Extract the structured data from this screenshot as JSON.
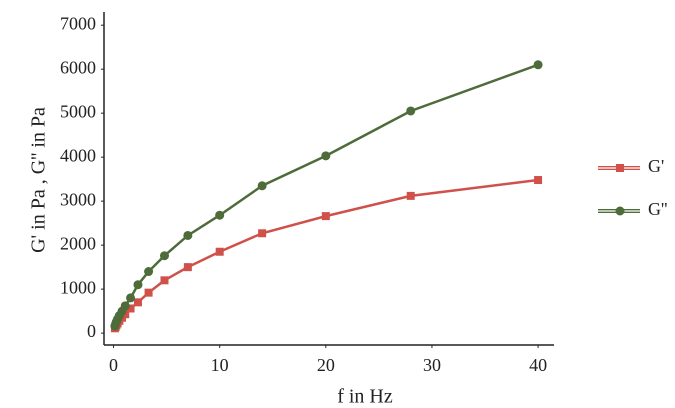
{
  "chart_data": {
    "type": "line",
    "x_label": "f in Hz",
    "y_label": "G' in Pa , G'' in Pa",
    "x": [
      0.13,
      0.19,
      0.27,
      0.38,
      0.55,
      0.8,
      1.1,
      1.6,
      2.3,
      3.3,
      4.8,
      7,
      10,
      14,
      20,
      28,
      40
    ],
    "series": [
      {
        "name": "G'",
        "color": "#d0504a",
        "marker": "square",
        "values": [
          110,
          140,
          180,
          220,
          280,
          350,
          430,
          560,
          700,
          920,
          1200,
          1500,
          1850,
          2270,
          2660,
          3120,
          3480
        ]
      },
      {
        "name": "G''",
        "color": "#4e6b3a",
        "marker": "circle",
        "values": [
          160,
          210,
          260,
          320,
          400,
          500,
          620,
          800,
          1100,
          1400,
          1760,
          2220,
          2680,
          3350,
          4030,
          5050,
          6100
        ]
      }
    ],
    "xlim": [
      -0.9,
      41.5
    ],
    "ylim": [
      -270,
      7300
    ],
    "xticks": [
      0,
      10,
      20,
      30,
      40
    ],
    "yticks": [
      0,
      1000,
      2000,
      3000,
      4000,
      5000,
      6000,
      7000
    ],
    "grid": false,
    "legend": "right"
  }
}
